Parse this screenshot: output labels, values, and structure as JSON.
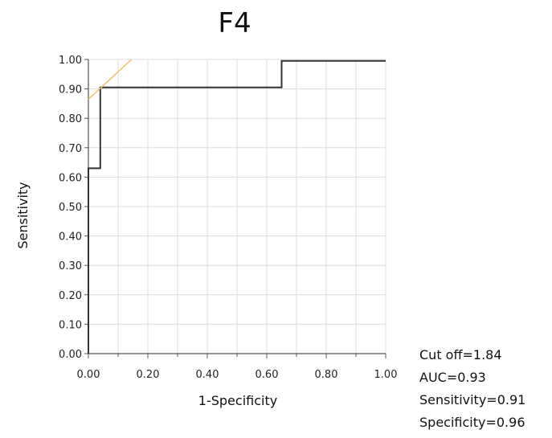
{
  "chart_data": {
    "type": "line",
    "title": "F4",
    "xlabel": "1-Specificity",
    "ylabel": "Sensitivity",
    "xlim": [
      0,
      1
    ],
    "ylim": [
      0,
      1
    ],
    "x_ticks": [
      "0.00",
      "0.20",
      "0.40",
      "0.60",
      "0.80",
      "1.00"
    ],
    "y_ticks": [
      "0.00",
      "0.10",
      "0.20",
      "0.30",
      "0.40",
      "0.50",
      "0.60",
      "0.70",
      "0.80",
      "0.90",
      "1.00"
    ],
    "grid": true,
    "series": [
      {
        "color": "#333333",
        "style": "step",
        "x": [
          0.0,
          0.0,
          0.04,
          0.04,
          0.65,
          0.65,
          1.0
        ],
        "y": [
          0.0,
          0.63,
          0.63,
          0.905,
          0.905,
          0.995,
          0.995
        ]
      },
      {
        "color": "#f0c060",
        "style": "line",
        "x": [
          0.0,
          0.145
        ],
        "y": [
          0.865,
          1.0
        ]
      }
    ],
    "annotations": [
      "Cut off=1.84",
      "AUC=0.93",
      "Sensitivity=0.91",
      "Specificity=0.96"
    ]
  }
}
